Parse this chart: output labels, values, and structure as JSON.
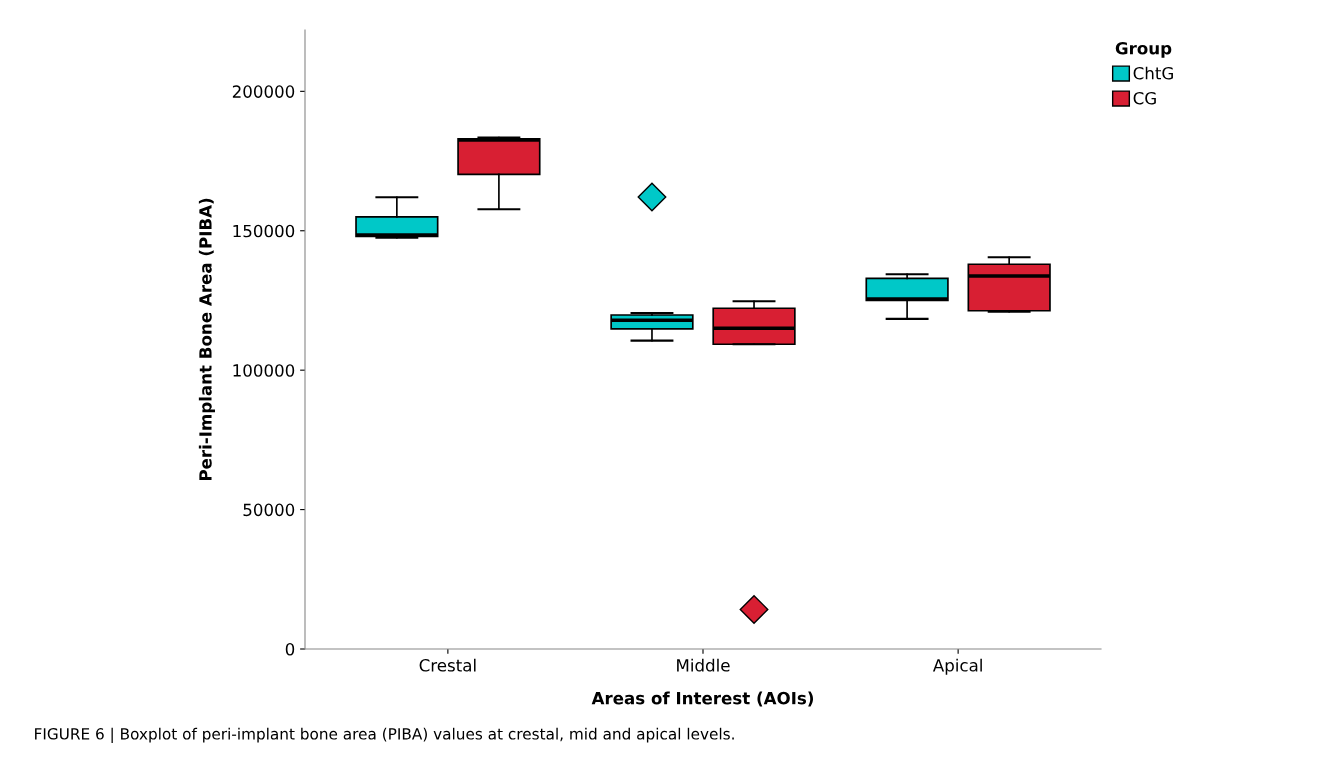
{
  "chart_data": {
    "type": "box",
    "xlabel": "Areas of Interest (AOIs)",
    "ylabel": "Peri-Implant Bone Area (PIBA)",
    "legend_title": "Group",
    "legend": "top right",
    "grid": false,
    "marker": "diamond",
    "categories": [
      "Crestal",
      "Middle",
      "Apical"
    ],
    "ylim": [
      0,
      222000
    ],
    "yticks": [
      0,
      50000,
      100000,
      150000,
      200000
    ],
    "series": [
      {
        "name": "ChtG",
        "color": "#00c8c8",
        "boxes": [
          {
            "low": 147500,
            "q1": 148000,
            "median": 148500,
            "q3": 155000,
            "high": 162000
          },
          {
            "low": 110600,
            "q1": 114800,
            "median": 117900,
            "q3": 119800,
            "high": 120500,
            "outliers": [
              162100
            ]
          },
          {
            "low": 118400,
            "q1": 125000,
            "median": 125500,
            "q3": 132900,
            "high": 134400
          }
        ]
      },
      {
        "name": "CG",
        "color": "#d81f33",
        "boxes": [
          {
            "low": 157700,
            "q1": 170200,
            "median": 182500,
            "q3": 183000,
            "high": 183400
          },
          {
            "low": 109300,
            "q1": 109300,
            "median": 115000,
            "q3": 122200,
            "high": 124700,
            "outliers": [
              14200
            ]
          },
          {
            "low": 121000,
            "q1": 121300,
            "median": 133800,
            "q3": 138000,
            "high": 140500
          }
        ]
      }
    ],
    "annotations": [
      "FIGURE 6 | Boxplot of peri-implant bone area (PIBA) values at crestal, mid and apical levels."
    ]
  }
}
